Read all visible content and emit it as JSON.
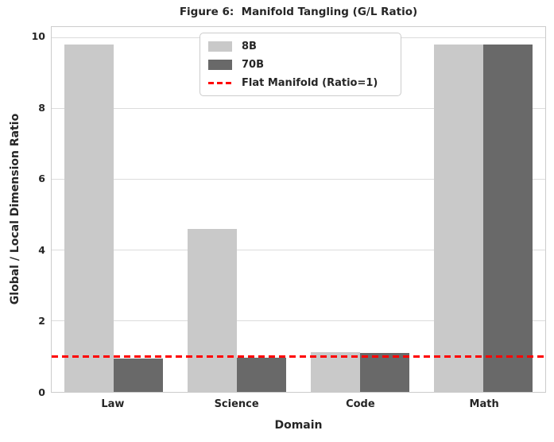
{
  "chart_data": {
    "type": "bar",
    "title": "Figure 6:  Manifold Tangling (G/L Ratio)",
    "xlabel": "Domain",
    "ylabel": "Global / Local Dimension Ratio",
    "categories": [
      "Law",
      "Science",
      "Code",
      "Math"
    ],
    "series": [
      {
        "name": "8B",
        "color": "#c9c9c9",
        "values": [
          9.8,
          4.6,
          1.12,
          9.8
        ]
      },
      {
        "name": "70B",
        "color": "#696969",
        "values": [
          0.95,
          0.97,
          1.1,
          9.8
        ]
      }
    ],
    "reference_line": {
      "label": "Flat Manifold (Ratio=1)",
      "value": 1,
      "color": "#ff0000",
      "style": "dashed"
    },
    "ylim": [
      0,
      10.3
    ],
    "yticks": [
      0,
      2,
      4,
      6,
      8,
      10
    ],
    "grid": "horizontal",
    "legend_position": "upper center",
    "bar_group_width_fraction": 0.8
  },
  "style": {
    "grid_color": "#dcdcdc",
    "spine_color": "#cccccc",
    "text_color": "#262626",
    "background": "#ffffff"
  }
}
